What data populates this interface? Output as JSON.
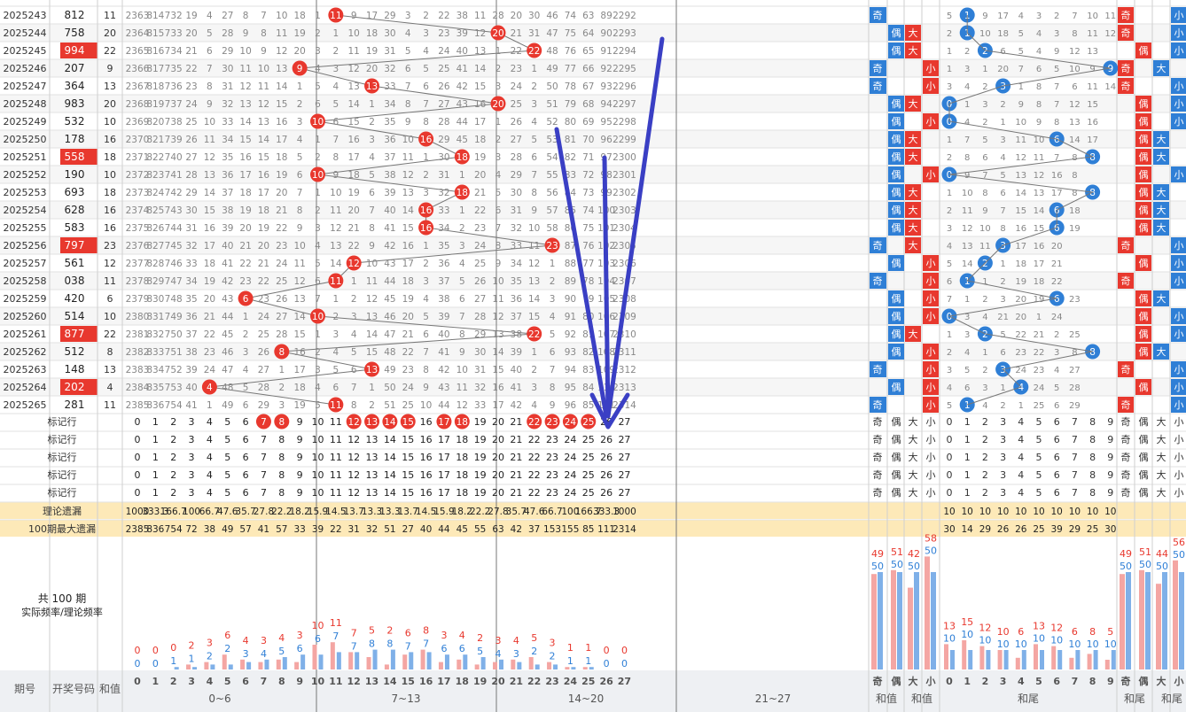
{
  "table": {
    "rows": [
      {
        "p": "2025243",
        "n": "812",
        "s": "11",
        "hl": false,
        "m": [
          2363,
          814,
          732,
          19,
          4,
          27,
          8,
          7,
          10,
          18,
          1,
          11,
          9,
          17,
          29,
          3,
          2,
          22,
          38,
          11,
          28,
          20,
          30,
          46,
          74,
          63,
          89,
          2292
        ]
      },
      {
        "p": "2025244",
        "n": "758",
        "s": "20",
        "hl": false,
        "m": [
          2364,
          815,
          733,
          20,
          5,
          28,
          9,
          8,
          11,
          19,
          2,
          1,
          10,
          18,
          30,
          4,
          3,
          23,
          39,
          12,
          20,
          21,
          31,
          47,
          75,
          64,
          90,
          2293
        ]
      },
      {
        "p": "2025245",
        "n": "994",
        "s": "22",
        "hl": true,
        "m": [
          2365,
          816,
          734,
          21,
          6,
          29,
          10,
          9,
          12,
          20,
          3,
          2,
          11,
          19,
          31,
          5,
          4,
          24,
          40,
          13,
          1,
          22,
          22,
          48,
          76,
          65,
          91,
          2294
        ]
      },
      {
        "p": "2025246",
        "n": "207",
        "s": "9",
        "hl": false,
        "m": [
          2366,
          817,
          735,
          22,
          7,
          30,
          11,
          10,
          13,
          9,
          4,
          3,
          12,
          20,
          32,
          6,
          5,
          25,
          41,
          14,
          2,
          23,
          1,
          49,
          77,
          66,
          92,
          2295
        ]
      },
      {
        "p": "2025247",
        "n": "364",
        "s": "13",
        "hl": false,
        "m": [
          2367,
          818,
          736,
          23,
          8,
          31,
          12,
          11,
          14,
          1,
          5,
          4,
          13,
          13,
          33,
          7,
          6,
          26,
          42,
          15,
          3,
          24,
          2,
          50,
          78,
          67,
          93,
          2296
        ]
      },
      {
        "p": "2025248",
        "n": "983",
        "s": "20",
        "hl": false,
        "m": [
          2368,
          819,
          737,
          24,
          9,
          32,
          13,
          12,
          15,
          2,
          6,
          5,
          14,
          1,
          34,
          8,
          7,
          27,
          43,
          16,
          20,
          25,
          3,
          51,
          79,
          68,
          94,
          2297
        ]
      },
      {
        "p": "2025249",
        "n": "532",
        "s": "10",
        "hl": false,
        "m": [
          2369,
          820,
          738,
          25,
          10,
          33,
          14,
          13,
          16,
          3,
          10,
          6,
          15,
          2,
          35,
          9,
          8,
          28,
          44,
          17,
          1,
          26,
          4,
          52,
          80,
          69,
          95,
          2298
        ]
      },
      {
        "p": "2025250",
        "n": "178",
        "s": "16",
        "hl": false,
        "m": [
          2370,
          821,
          739,
          26,
          11,
          34,
          15,
          14,
          17,
          4,
          1,
          7,
          16,
          3,
          36,
          10,
          16,
          29,
          45,
          18,
          2,
          27,
          5,
          53,
          81,
          70,
          96,
          2299
        ]
      },
      {
        "p": "2025251",
        "n": "558",
        "s": "18",
        "hl": true,
        "m": [
          2371,
          822,
          740,
          27,
          12,
          35,
          16,
          15,
          18,
          5,
          2,
          8,
          17,
          4,
          37,
          11,
          1,
          30,
          18,
          19,
          3,
          28,
          6,
          54,
          82,
          71,
          97,
          2300
        ]
      },
      {
        "p": "2025252",
        "n": "190",
        "s": "10",
        "hl": false,
        "m": [
          2372,
          823,
          741,
          28,
          13,
          36,
          17,
          16,
          19,
          6,
          10,
          9,
          18,
          5,
          38,
          12,
          2,
          31,
          1,
          20,
          4,
          29,
          7,
          55,
          83,
          72,
          98,
          2301
        ]
      },
      {
        "p": "2025253",
        "n": "693",
        "s": "18",
        "hl": false,
        "m": [
          2373,
          824,
          742,
          29,
          14,
          37,
          18,
          17,
          20,
          7,
          1,
          10,
          19,
          6,
          39,
          13,
          3,
          32,
          18,
          21,
          5,
          30,
          8,
          56,
          84,
          73,
          99,
          2302
        ]
      },
      {
        "p": "2025254",
        "n": "628",
        "s": "16",
        "hl": false,
        "m": [
          2374,
          825,
          743,
          30,
          15,
          38,
          19,
          18,
          21,
          8,
          2,
          11,
          20,
          7,
          40,
          14,
          16,
          33,
          1,
          22,
          6,
          31,
          9,
          57,
          85,
          74,
          100,
          2303
        ]
      },
      {
        "p": "2025255",
        "n": "583",
        "s": "16",
        "hl": false,
        "m": [
          2375,
          826,
          744,
          31,
          16,
          39,
          20,
          19,
          22,
          9,
          3,
          12,
          21,
          8,
          41,
          15,
          16,
          34,
          2,
          23,
          7,
          32,
          10,
          58,
          86,
          75,
          101,
          2304
        ]
      },
      {
        "p": "2025256",
        "n": "797",
        "s": "23",
        "hl": true,
        "m": [
          2376,
          827,
          745,
          32,
          17,
          40,
          21,
          20,
          23,
          10,
          4,
          13,
          22,
          9,
          42,
          16,
          1,
          35,
          3,
          24,
          8,
          33,
          11,
          23,
          87,
          76,
          102,
          2305
        ]
      },
      {
        "p": "2025257",
        "n": "561",
        "s": "12",
        "hl": false,
        "m": [
          2377,
          828,
          746,
          33,
          18,
          41,
          22,
          21,
          24,
          11,
          5,
          14,
          12,
          10,
          43,
          17,
          2,
          36,
          4,
          25,
          9,
          34,
          12,
          1,
          88,
          77,
          103,
          2306
        ]
      },
      {
        "p": "2025258",
        "n": "038",
        "s": "11",
        "hl": false,
        "m": [
          2378,
          829,
          747,
          34,
          19,
          42,
          23,
          22,
          25,
          12,
          6,
          11,
          1,
          11,
          44,
          18,
          3,
          37,
          5,
          26,
          10,
          35,
          13,
          2,
          89,
          78,
          104,
          2307
        ]
      },
      {
        "p": "2025259",
        "n": "420",
        "s": "6",
        "hl": false,
        "m": [
          2379,
          830,
          748,
          35,
          20,
          43,
          6,
          23,
          26,
          13,
          7,
          1,
          2,
          12,
          45,
          19,
          4,
          38,
          6,
          27,
          11,
          36,
          14,
          3,
          90,
          79,
          105,
          2308
        ]
      },
      {
        "p": "2025260",
        "n": "514",
        "n2": "",
        "s": "10",
        "hl": false,
        "m": [
          2380,
          831,
          749,
          36,
          21,
          44,
          1,
          24,
          27,
          14,
          10,
          2,
          3,
          13,
          46,
          20,
          5,
          39,
          7,
          28,
          12,
          37,
          15,
          4,
          91,
          80,
          106,
          2309
        ]
      },
      {
        "p": "2025261",
        "n": "877",
        "s": "22",
        "hl": true,
        "m": [
          2381,
          832,
          750,
          37,
          22,
          45,
          2,
          25,
          28,
          15,
          1,
          3,
          4,
          14,
          47,
          21,
          6,
          40,
          8,
          29,
          13,
          38,
          22,
          5,
          92,
          81,
          107,
          2310
        ]
      },
      {
        "p": "2025262",
        "n": "512",
        "s": "8",
        "hl": false,
        "m": [
          2382,
          833,
          751,
          38,
          23,
          46,
          3,
          26,
          8,
          16,
          2,
          4,
          5,
          15,
          48,
          22,
          7,
          41,
          9,
          30,
          14,
          39,
          1,
          6,
          93,
          82,
          108,
          2311
        ]
      },
      {
        "p": "2025263",
        "n": "148",
        "s": "13",
        "hl": false,
        "m": [
          2383,
          834,
          752,
          39,
          24,
          47,
          4,
          27,
          1,
          17,
          3,
          5,
          6,
          13,
          49,
          23,
          8,
          42,
          10,
          31,
          15,
          40,
          2,
          7,
          94,
          83,
          109,
          2312
        ]
      },
      {
        "p": "2025264",
        "n": "202",
        "s": "4",
        "hl": true,
        "m": [
          2384,
          835,
          753,
          40,
          4,
          48,
          5,
          28,
          2,
          18,
          4,
          6,
          7,
          1,
          50,
          24,
          9,
          43,
          11,
          32,
          16,
          41,
          3,
          8,
          95,
          84,
          110,
          2313
        ]
      },
      {
        "p": "2025265",
        "n": "281",
        "s": "11",
        "hl": false,
        "m": [
          2385,
          836,
          754,
          41,
          1,
          49,
          6,
          29,
          3,
          19,
          5,
          11,
          8,
          2,
          51,
          25,
          10,
          44,
          12,
          33,
          17,
          42,
          4,
          9,
          96,
          85,
          111,
          2314
        ]
      }
    ],
    "oe": [
      [
        "奇",
        "",
        ""
      ],
      [
        "",
        "偶",
        "大"
      ],
      [
        "",
        "偶",
        "大"
      ],
      [
        "奇",
        "",
        "小"
      ],
      [
        "奇",
        "",
        "小"
      ],
      [
        "",
        "偶",
        "大"
      ],
      [
        "",
        "偶",
        "小"
      ],
      [
        "",
        "偶",
        "大"
      ],
      [
        "",
        "偶",
        "大"
      ],
      [
        "",
        "偶",
        "小"
      ],
      [
        "",
        "偶",
        "大"
      ],
      [
        "",
        "偶",
        "大"
      ],
      [
        "",
        "偶",
        "大"
      ],
      [
        "奇",
        "",
        "大"
      ],
      [
        "",
        "偶",
        "小"
      ],
      [
        "奇",
        "",
        "小"
      ],
      [
        "",
        "偶",
        "小"
      ],
      [
        "",
        "偶",
        "小"
      ],
      [
        "",
        "偶",
        "大"
      ],
      [
        "",
        "偶",
        "小"
      ],
      [
        "奇",
        "",
        "小"
      ],
      [
        "",
        "偶",
        "小"
      ],
      [
        "奇",
        "",
        "小"
      ]
    ],
    "tail_pos": [
      1,
      1,
      2,
      9,
      3,
      0,
      0,
      6,
      8,
      0,
      8,
      6,
      6,
      3,
      2,
      1,
      6,
      0,
      2,
      8,
      3,
      4,
      1
    ],
    "tail_text": [
      "5 1 9 17 4 3 2 7 10 11",
      "2 1 10 18 5 4 3 8 11 12",
      "1 2 19 6 5 4 9 12 13",
      "1 3 1 20 7 6 5 10 9",
      "3 4 2 3 1 8 7 6 11 14",
      "5 1 3 2 9 8 7 12 15",
      "6 4 2 1 10 9 8 13 16",
      "1 7 5 3 11 10 6 14 17",
      "2 8 6 4 12 11 7 8 5",
      "1 9 7 5 13 12 16 8",
      "1 10 8 6 14 13 17 8",
      "2 11 9 7 15 14 6 18",
      "3 12 10 8 16 15 6 19",
      "4 13 11 3 17 16 20",
      "5 14 2 1 18 17 21",
      "6 1 1 2 19 18 22",
      "7 1 2 3 20 19 6 23",
      "1 3 4 21 20 1 24",
      "1 3 2 5 22 21 2 25",
      "2 4 1 6 23 22 3 8",
      "3 5 2 3 24 23 4 27",
      "4 6 3 1 4 24 5 28",
      "5 1 4 2 1 25 6 29"
    ],
    "bottom_oe": [
      "奇",
      "偶",
      "",
      "小"
    ]
  },
  "labels": {
    "mark_row": "标记行",
    "theory": "理论遗漏",
    "max_miss": "100期最大遗漏",
    "total": "共 100 期",
    "freq_caption": "实际频率/理论频率",
    "col_period": "期号",
    "col_number": "开奖号码",
    "col_sum": "和值",
    "group_0_6": "0~6",
    "group_7_13": "7~13",
    "group_14_20": "14~20",
    "group_21_27": "21~27",
    "group_sum_value": "和值",
    "group_sum_value2": "和值",
    "group_tail": "和尾",
    "group_tail_oe": "和尾",
    "group_tail_oe2": "和尾",
    "oe_odd": "奇",
    "oe_even": "偶",
    "oe_big": "大",
    "oe_small": "小"
  },
  "marked": [
    7,
    8,
    12,
    13,
    14,
    15,
    17,
    18,
    22,
    23,
    24,
    25
  ],
  "theory_values": [
    "1000",
    "333.3",
    "166.7",
    "100",
    "66.7",
    "47.6",
    "35.7",
    "27.8",
    "22.2",
    "18.2",
    "15.9",
    "14.5",
    "13.7",
    "13.3",
    "13.3",
    "13.7",
    "14.5",
    "15.9",
    "18.2",
    "22.2",
    "27.8",
    "35.7",
    "47.6",
    "66.7",
    "100",
    "166.7",
    "333.3",
    "1000"
  ],
  "max_values": [
    "2385",
    "836",
    "754",
    "72",
    "38",
    "49",
    "57",
    "41",
    "57",
    "33",
    "39",
    "22",
    "31",
    "32",
    "51",
    "27",
    "40",
    "44",
    "45",
    "55",
    "63",
    "42",
    "37",
    "153",
    "155",
    "85",
    "111",
    "2314"
  ],
  "tail_theory": [
    "10",
    "10",
    "10",
    "10",
    "10",
    "10",
    "10",
    "10",
    "10",
    "10"
  ],
  "tail_max": [
    "30",
    "14",
    "29",
    "26",
    "26",
    "25",
    "39",
    "29",
    "25",
    "30"
  ],
  "chart_data": {
    "type": "bar",
    "categories": [
      "0",
      "1",
      "2",
      "3",
      "4",
      "5",
      "6",
      "7",
      "8",
      "9",
      "10",
      "11",
      "12",
      "13",
      "14",
      "15",
      "16",
      "17",
      "18",
      "19",
      "20",
      "21",
      "22",
      "23",
      "24",
      "25",
      "26",
      "27"
    ],
    "series": [
      {
        "name": "实际频率",
        "values": [
          0,
          0,
          0,
          2,
          3,
          6,
          4,
          3,
          4,
          3,
          10,
          11,
          7,
          5,
          2,
          6,
          8,
          3,
          4,
          2,
          3,
          4,
          5,
          3,
          1,
          1,
          0,
          0
        ]
      },
      {
        "name": "理论频率",
        "values": [
          0,
          0,
          1,
          1,
          2,
          2,
          3,
          4,
          5,
          6,
          6,
          7,
          7,
          8,
          8,
          7,
          7,
          6,
          6,
          5,
          4,
          3,
          2,
          2,
          1,
          1,
          0,
          0
        ]
      }
    ],
    "oe_categories": [
      "奇",
      "偶",
      "大",
      "小"
    ],
    "oe_series": [
      {
        "name": "实际频率",
        "values": [
          49,
          51,
          42,
          58
        ]
      },
      {
        "name": "理论频率",
        "values": [
          50,
          50,
          50,
          50
        ]
      }
    ],
    "tail_categories": [
      "0",
      "1",
      "2",
      "3",
      "4",
      "5",
      "6",
      "7",
      "8",
      "9"
    ],
    "tail_series": [
      {
        "name": "实际频率",
        "values": [
          13,
          15,
          12,
          10,
          6,
          13,
          12,
          6,
          8,
          5
        ]
      },
      {
        "name": "理论频率",
        "values": [
          10,
          10,
          10,
          10,
          10,
          10,
          10,
          10,
          10,
          10
        ]
      }
    ],
    "tail_oe_categories": [
      "奇",
      "偶",
      "大",
      "小"
    ],
    "tail_oe_series": [
      {
        "name": "实际频率",
        "values": [
          49,
          51,
          44,
          56
        ]
      },
      {
        "name": "理论频率",
        "values": [
          50,
          50,
          50,
          50
        ]
      }
    ]
  },
  "colors": {
    "red": "#e8382e",
    "blue": "#2f7fd6",
    "annotation": "#3a3fc4",
    "highlight": "#fde9b8"
  }
}
